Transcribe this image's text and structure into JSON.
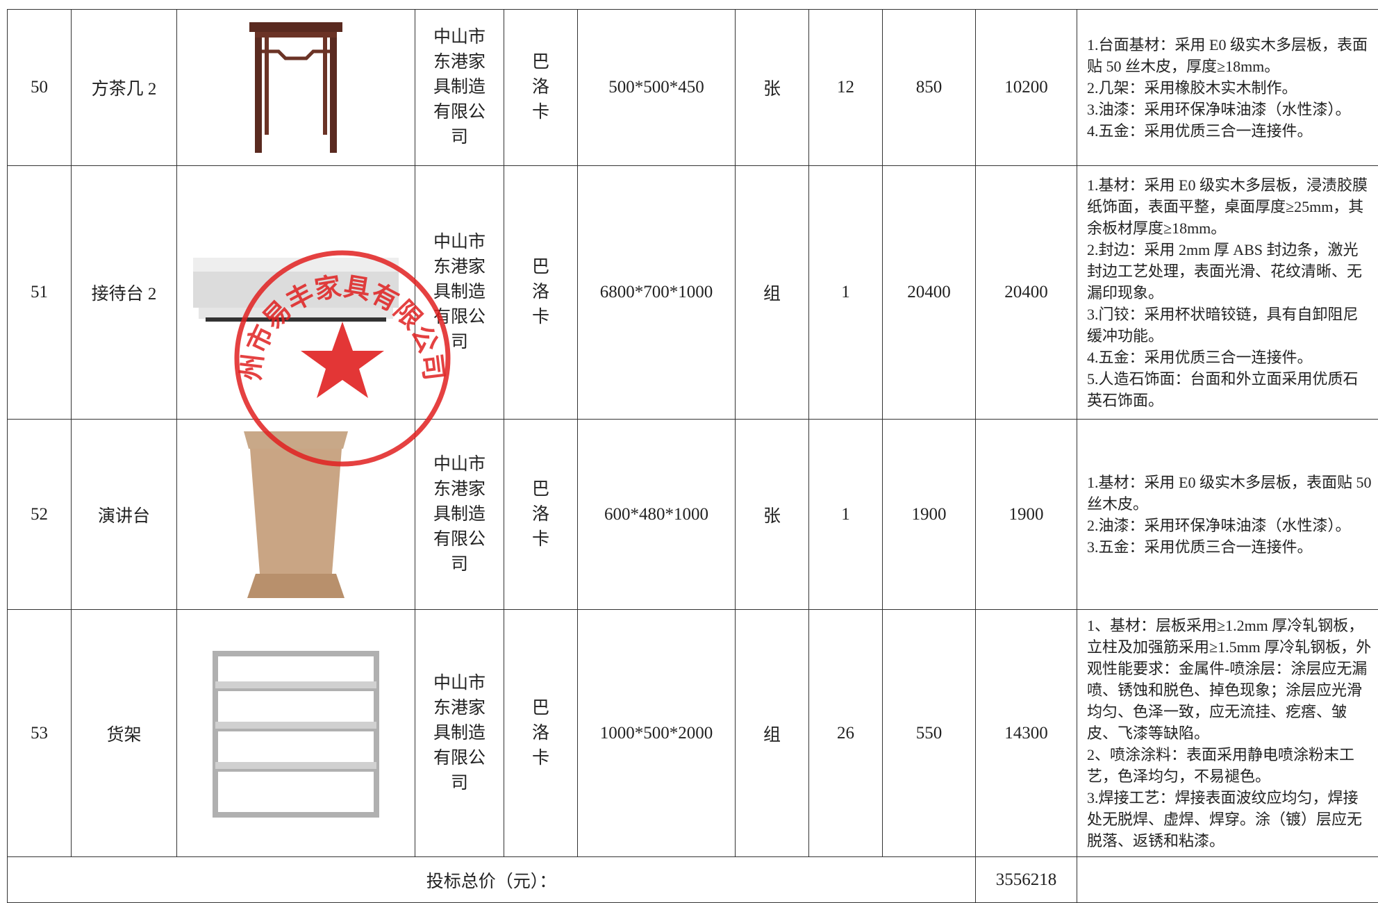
{
  "table": {
    "rows": [
      {
        "no": "50",
        "name": "方茶几 2",
        "supplier": "中山市东港家具制造有限公司",
        "brand": "巴洛卡",
        "size": "500*500*450",
        "unit": "张",
        "qty": "12",
        "price": "850",
        "total": "10200",
        "spec": [
          "1.台面基材：采用 E0 级实木多层板，表面贴 50 丝木皮，厚度≥18mm。",
          "2.几架：采用橡胶木实木制作。",
          "3.油漆：采用环保净味油漆（水性漆）。",
          "4.五金：采用优质三合一连接件。"
        ]
      },
      {
        "no": "51",
        "name": "接待台 2",
        "supplier": "中山市东港家具制造有限公司",
        "brand": "巴洛卡",
        "size": "6800*700*1000",
        "unit": "组",
        "qty": "1",
        "price": "20400",
        "total": "20400",
        "spec": [
          "1.基材：采用 E0 级实木多层板，浸渍胶膜纸饰面，表面平整，桌面厚度≥25mm，其余板材厚度≥18mm。",
          "2.封边：采用 2mm 厚 ABS 封边条，激光封边工艺处理，表面光滑、花纹清晰、无漏印现象。",
          "3.门铰：采用杯状暗铰链，具有自卸阻尼缓冲功能。",
          "4.五金：采用优质三合一连接件。",
          "5.人造石饰面：台面和外立面采用优质石英石饰面。"
        ]
      },
      {
        "no": "52",
        "name": "演讲台",
        "supplier": "中山市东港家具制造有限公司",
        "brand": "巴洛卡",
        "size": "600*480*1000",
        "unit": "张",
        "qty": "1",
        "price": "1900",
        "total": "1900",
        "spec": [
          "1.基材：采用 E0 级实木多层板，表面贴 50 丝木皮。",
          "2.油漆：采用环保净味油漆（水性漆）。",
          "3.五金：采用优质三合一连接件。"
        ]
      },
      {
        "no": "53",
        "name": "货架",
        "supplier": "中山市东港家具制造有限公司",
        "brand": "巴洛卡",
        "size": "1000*500*2000",
        "unit": "组",
        "qty": "26",
        "price": "550",
        "total": "14300",
        "spec": [
          "1、基材：层板采用≥1.2mm 厚冷轧钢板，立柱及加强筋采用≥1.5mm 厚冷轧钢板，外观性能要求：金属件-喷涂层：涂层应无漏喷、锈蚀和脱色、掉色现象；涂层应光滑均匀、色泽一致，应无流挂、疙瘩、皱皮、飞漆等缺陷。",
          "2、喷涂涂料：表面采用静电喷涂粉末工艺，色泽均匀，不易褪色。",
          "3.焊接工艺：焊接表面波纹应均匀，焊接处无脱焊、虚焊、焊穿。涂（镀）层应无脱落、返锈和粘漆。"
        ]
      }
    ],
    "footer": {
      "label": "投标总价（元）：",
      "total": "3556218"
    }
  },
  "stamp": {
    "text": "州市易丰家具有限公司"
  }
}
